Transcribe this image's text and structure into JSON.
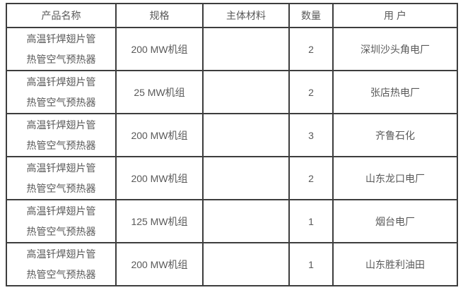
{
  "colors": {
    "border": "#3d3d3d",
    "text": "#595959",
    "background": "#ffffff"
  },
  "table": {
    "headers": [
      "产品名称",
      "规格",
      "主体材料",
      "数量",
      "用 户"
    ],
    "rows": [
      {
        "product_line1": "高温钎焊翅片管",
        "product_line2": "热管空气预热器",
        "spec": "200 MW机组",
        "material": "",
        "qty": "2",
        "user": "深圳沙头角电厂"
      },
      {
        "product_line1": "高温钎焊翅片管",
        "product_line2": "热管空气预热器",
        "spec": "25 MW机组",
        "material": "",
        "qty": "2",
        "user": "张店热电厂"
      },
      {
        "product_line1": "高温钎焊翅片管",
        "product_line2": "热管空气预热器",
        "spec": "200 MW机组",
        "material": "",
        "qty": "3",
        "user": "齐鲁石化"
      },
      {
        "product_line1": "高温钎焊翅片管",
        "product_line2": "热管空气预热器",
        "spec": "200 MW机组",
        "material": "",
        "qty": "2",
        "user": "山东龙口电厂"
      },
      {
        "product_line1": "高温钎焊翅片管",
        "product_line2": "热管空气预热器",
        "spec": "125 MW机组",
        "material": "",
        "qty": "1",
        "user": "烟台电厂"
      },
      {
        "product_line1": "高温钎焊翅片管",
        "product_line2": "热管空气预热器",
        "spec": "200 MW机组",
        "material": "",
        "qty": "1",
        "user": "山东胜利油田"
      }
    ]
  }
}
